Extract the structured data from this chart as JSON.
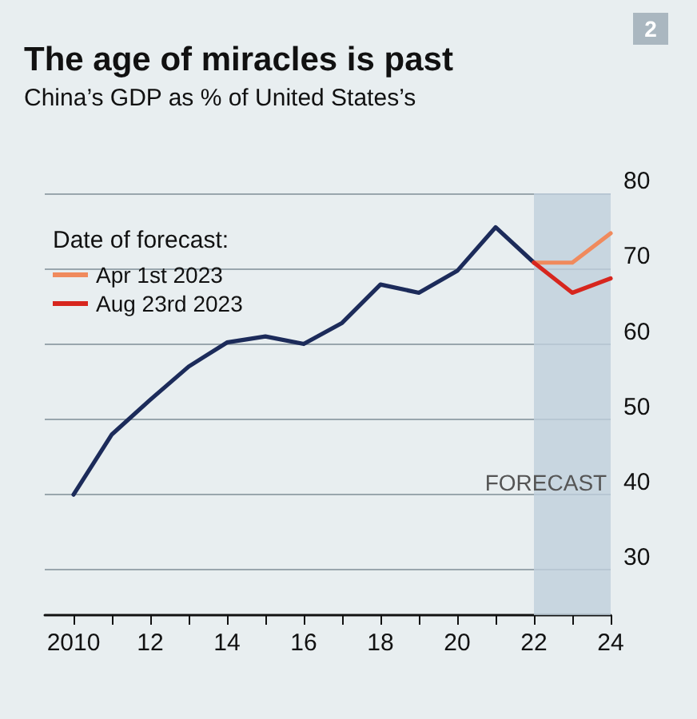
{
  "chart_data": {
    "type": "line",
    "title": "The age of miracles is past",
    "subtitle": "China’s GDP as % of United States’s",
    "legend_title": "Date of forecast:",
    "series": [
      {
        "color": "#1c2b5a",
        "x": [
          2010,
          2011,
          2012,
          2013,
          2014,
          2015,
          2016,
          2017,
          2018,
          2019,
          2020,
          2021,
          2022
        ],
        "values": [
          40,
          48,
          52.6,
          57,
          60.2,
          61,
          60,
          62.8,
          67.9,
          66.8,
          69.7,
          75.5,
          70.8
        ]
      },
      {
        "name": "Apr 1st 2023",
        "color": "#f08a5d",
        "x": [
          2022,
          2023,
          2024
        ],
        "values": [
          70.8,
          70.8,
          74.7
        ]
      },
      {
        "name": "Aug 23rd 2023",
        "color": "#d7261e",
        "x": [
          2022,
          2023,
          2024
        ],
        "values": [
          70.8,
          66.8,
          68.7
        ]
      }
    ],
    "xlim": [
      2009.25,
      2024
    ],
    "xticks": [
      2010,
      {
        "value": 2011,
        "label": null
      },
      {
        "value": 2012,
        "label": "12"
      },
      {
        "value": 2013,
        "label": null
      },
      {
        "value": 2014,
        "label": "14"
      },
      {
        "value": 2015,
        "label": null
      },
      {
        "value": 2016,
        "label": "16"
      },
      {
        "value": 2017,
        "label": null
      },
      {
        "value": 2018,
        "label": "18"
      },
      {
        "value": 2019,
        "label": null
      },
      {
        "value": 2020,
        "label": "20"
      },
      {
        "value": 2021,
        "label": null
      },
      {
        "value": 2022,
        "label": "22"
      },
      {
        "value": 2023,
        "label": null
      },
      {
        "value": 2024,
        "label": "24"
      }
    ],
    "ylim": [
      24,
      80
    ],
    "yticks": [
      30,
      40,
      50,
      60,
      70,
      80
    ],
    "bands": [
      {
        "axis": "x",
        "from": 2022,
        "to": 2024,
        "label": "FORECAST",
        "color": "#bfcfdc"
      }
    ],
    "annotations": [
      "2"
    ],
    "grid": "y",
    "legend": "top left",
    "marker": "none",
    "line_style": "solid"
  }
}
